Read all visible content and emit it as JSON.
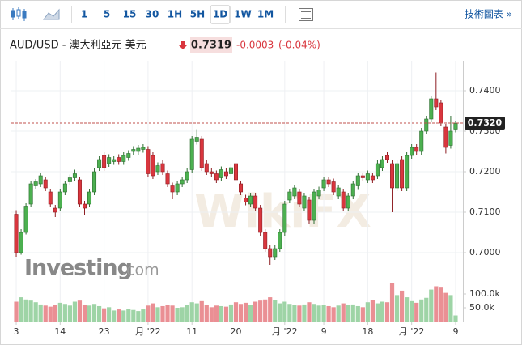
{
  "toolbar": {
    "intervals": [
      "1",
      "5",
      "15",
      "30",
      "1H",
      "5H",
      "1D",
      "1W",
      "1M"
    ],
    "active_interval": 6,
    "link": "技術圖表 »"
  },
  "header": {
    "symbol": "AUD/USD - 澳大利亞元 美元",
    "price": "0.7319",
    "change": "-0.0003",
    "change_pct": "(-0.04%)"
  },
  "watermarks": {
    "logo": "Investing",
    "logo_suffix": ".com",
    "faint": "WikiFX"
  },
  "chart_data": {
    "type": "candlestick",
    "up_color": "#4cb050",
    "down_color": "#d9363e",
    "ohlc": [
      [
        0.7095,
        0.7105,
        0.699,
        0.7
      ],
      [
        0.7,
        0.7058,
        0.6995,
        0.705
      ],
      [
        0.705,
        0.7122,
        0.7045,
        0.7115
      ],
      [
        0.712,
        0.7178,
        0.7112,
        0.717
      ],
      [
        0.7165,
        0.7182,
        0.7158,
        0.7175
      ],
      [
        0.717,
        0.7198,
        0.7162,
        0.719
      ],
      [
        0.718,
        0.7188,
        0.7152,
        0.716
      ],
      [
        0.715,
        0.7158,
        0.7112,
        0.712
      ],
      [
        0.711,
        0.7118,
        0.7088,
        0.71
      ],
      [
        0.711,
        0.7158,
        0.7102,
        0.715
      ],
      [
        0.715,
        0.7178,
        0.7142,
        0.717
      ],
      [
        0.7175,
        0.7193,
        0.7167,
        0.7185
      ],
      [
        0.7185,
        0.7205,
        0.7177,
        0.7195
      ],
      [
        0.718,
        0.7188,
        0.7112,
        0.712
      ],
      [
        0.712,
        0.7128,
        0.7092,
        0.711
      ],
      [
        0.712,
        0.7158,
        0.7112,
        0.715
      ],
      [
        0.715,
        0.7208,
        0.7142,
        0.72
      ],
      [
        0.721,
        0.7238,
        0.7202,
        0.723
      ],
      [
        0.724,
        0.7248,
        0.7202,
        0.721
      ],
      [
        0.722,
        0.7243,
        0.7212,
        0.7235
      ],
      [
        0.7225,
        0.7238,
        0.7217,
        0.723
      ],
      [
        0.7235,
        0.7243,
        0.7217,
        0.7225
      ],
      [
        0.7225,
        0.7248,
        0.7217,
        0.724
      ],
      [
        0.7235,
        0.7253,
        0.7227,
        0.7245
      ],
      [
        0.725,
        0.7263,
        0.7242,
        0.7255
      ],
      [
        0.725,
        0.7266,
        0.7242,
        0.7258
      ],
      [
        0.7255,
        0.7268,
        0.7247,
        0.726
      ],
      [
        0.7255,
        0.7263,
        0.7187,
        0.7195
      ],
      [
        0.724,
        0.7248,
        0.7182,
        0.719
      ],
      [
        0.72,
        0.7223,
        0.7192,
        0.7215
      ],
      [
        0.722,
        0.7228,
        0.7192,
        0.72
      ],
      [
        0.7195,
        0.7203,
        0.7162,
        0.717
      ],
      [
        0.7165,
        0.7173,
        0.7132,
        0.715
      ],
      [
        0.715,
        0.7178,
        0.7142,
        0.717
      ],
      [
        0.717,
        0.7188,
        0.7162,
        0.718
      ],
      [
        0.718,
        0.7208,
        0.7172,
        0.72
      ],
      [
        0.7205,
        0.7288,
        0.7197,
        0.728
      ],
      [
        0.7275,
        0.7305,
        0.7267,
        0.7285
      ],
      [
        0.728,
        0.7288,
        0.7202,
        0.721
      ],
      [
        0.722,
        0.7228,
        0.7192,
        0.72
      ],
      [
        0.72,
        0.7208,
        0.7187,
        0.7195
      ],
      [
        0.7195,
        0.7203,
        0.7172,
        0.718
      ],
      [
        0.7185,
        0.7213,
        0.7177,
        0.7205
      ],
      [
        0.72,
        0.7208,
        0.7182,
        0.719
      ],
      [
        0.7195,
        0.7218,
        0.7187,
        0.721
      ],
      [
        0.722,
        0.7228,
        0.7172,
        0.718
      ],
      [
        0.717,
        0.7178,
        0.7142,
        0.715
      ],
      [
        0.7135,
        0.7143,
        0.7117,
        0.7125
      ],
      [
        0.712,
        0.7148,
        0.7112,
        0.714
      ],
      [
        0.714,
        0.7148,
        0.7102,
        0.711
      ],
      [
        0.711,
        0.7118,
        0.7042,
        0.705
      ],
      [
        0.705,
        0.7058,
        0.7002,
        0.701
      ],
      [
        0.701,
        0.7018,
        0.697,
        0.699
      ],
      [
        0.699,
        0.7018,
        0.6982,
        0.701
      ],
      [
        0.701,
        0.7058,
        0.7002,
        0.705
      ],
      [
        0.705,
        0.7128,
        0.7042,
        0.712
      ],
      [
        0.713,
        0.7158,
        0.7122,
        0.715
      ],
      [
        0.714,
        0.7168,
        0.7132,
        0.716
      ],
      [
        0.715,
        0.7158,
        0.7112,
        0.712
      ],
      [
        0.711,
        0.7148,
        0.7102,
        0.714
      ],
      [
        0.713,
        0.7138,
        0.7072,
        0.708
      ],
      [
        0.708,
        0.7158,
        0.7072,
        0.715
      ],
      [
        0.714,
        0.7163,
        0.7132,
        0.7155
      ],
      [
        0.716,
        0.7188,
        0.7152,
        0.718
      ],
      [
        0.718,
        0.7188,
        0.7162,
        0.717
      ],
      [
        0.7175,
        0.7183,
        0.7142,
        0.715
      ],
      [
        0.714,
        0.7168,
        0.7132,
        0.716
      ],
      [
        0.715,
        0.7158,
        0.7102,
        0.711
      ],
      [
        0.711,
        0.7148,
        0.7102,
        0.714
      ],
      [
        0.714,
        0.7178,
        0.7132,
        0.717
      ],
      [
        0.7165,
        0.7198,
        0.7157,
        0.719
      ],
      [
        0.719,
        0.7198,
        0.7177,
        0.7185
      ],
      [
        0.718,
        0.7203,
        0.7172,
        0.7195
      ],
      [
        0.719,
        0.7198,
        0.7172,
        0.718
      ],
      [
        0.719,
        0.7228,
        0.7182,
        0.722
      ],
      [
        0.721,
        0.7238,
        0.7202,
        0.723
      ],
      [
        0.724,
        0.7248,
        0.7222,
        0.723
      ],
      [
        0.722,
        0.7228,
        0.71,
        0.716
      ],
      [
        0.716,
        0.7228,
        0.7152,
        0.722
      ],
      [
        0.723,
        0.7238,
        0.7152,
        0.716
      ],
      [
        0.716,
        0.7248,
        0.7152,
        0.724
      ],
      [
        0.724,
        0.7268,
        0.7232,
        0.726
      ],
      [
        0.726,
        0.7268,
        0.7242,
        0.725
      ],
      [
        0.725,
        0.7308,
        0.7242,
        0.73
      ],
      [
        0.73,
        0.7338,
        0.7292,
        0.733
      ],
      [
        0.733,
        0.7388,
        0.7322,
        0.738
      ],
      [
        0.738,
        0.7445,
        0.7352,
        0.736
      ],
      [
        0.737,
        0.7378,
        0.7312,
        0.732
      ],
      [
        0.731,
        0.7318,
        0.7245,
        0.726
      ],
      [
        0.7265,
        0.7338,
        0.7257,
        0.73
      ],
      [
        0.7305,
        0.7325,
        0.7297,
        0.7319
      ]
    ],
    "xlim": [
      -1,
      91.5
    ],
    "xticks": [
      {
        "value": 0,
        "label": "3"
      },
      {
        "value": 9,
        "label": "14"
      },
      {
        "value": 18,
        "label": "23"
      },
      {
        "value": 27,
        "label": "月 '22"
      },
      {
        "value": 36,
        "label": "11"
      },
      {
        "value": 45,
        "label": "20"
      },
      {
        "value": 55,
        "label": "月 '22"
      },
      {
        "value": 63,
        "label": "9"
      },
      {
        "value": 72,
        "label": "18"
      },
      {
        "value": 81,
        "label": "月 '22"
      },
      {
        "value": 90,
        "label": "9"
      }
    ],
    "ylim": [
      0.6944,
      0.7464
    ],
    "yticks": [
      {
        "value": 0.7,
        "label": "0.7000"
      },
      {
        "value": 0.71,
        "label": "0.7100"
      },
      {
        "value": 0.72,
        "label": "0.7200"
      },
      {
        "value": 0.73,
        "label": "0.7300"
      },
      {
        "value": 0.74,
        "label": "0.7400"
      }
    ],
    "last_price": {
      "value": 0.732,
      "label": "0.7320"
    },
    "grid": true,
    "volume": {
      "values": [
        72000,
        88000,
        80000,
        76000,
        70000,
        62000,
        58000,
        54000,
        60000,
        68000,
        64000,
        58000,
        72000,
        76000,
        60000,
        58000,
        64000,
        56000,
        48000,
        52000,
        40000,
        44000,
        40000,
        46000,
        42000,
        38000,
        44000,
        58000,
        66000,
        52000,
        56000,
        60000,
        58000,
        50000,
        52000,
        60000,
        70000,
        66000,
        74000,
        60000,
        52000,
        58000,
        56000,
        54000,
        62000,
        70000,
        64000,
        68000,
        60000,
        72000,
        76000,
        80000,
        88000,
        78000,
        66000,
        72000,
        64000,
        60000,
        58000,
        62000,
        70000,
        64000,
        58000,
        60000,
        56000,
        52000,
        58000,
        66000,
        60000,
        62000,
        56000,
        52000,
        70000,
        78000,
        66000,
        72000,
        70000,
        140000,
        96000,
        112000,
        88000,
        74000,
        68000,
        80000,
        86000,
        116000,
        128000,
        126000,
        104000,
        96000,
        22000
      ],
      "ylim": [
        0,
        150000
      ],
      "yticks": [
        {
          "value": 100000,
          "label": "100.0k"
        },
        {
          "value": 50000,
          "label": "50.0k"
        }
      ]
    }
  }
}
